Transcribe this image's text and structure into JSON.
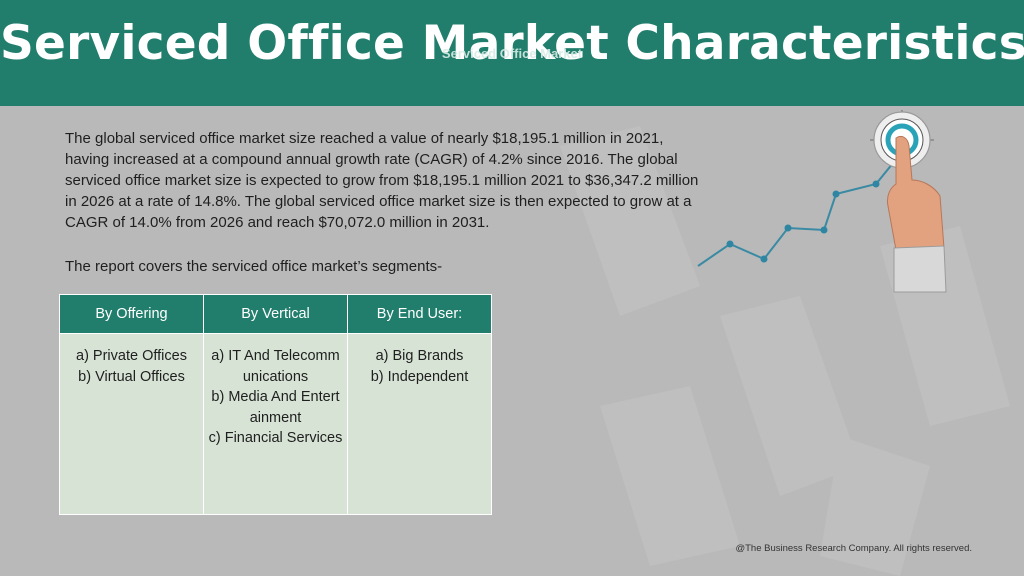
{
  "header": {
    "title": "Serviced Office Market Characteristics:",
    "overlay_text": "Serviced Office Market"
  },
  "intro": {
    "paragraph": "The global serviced office market size reached a value of nearly $18,195.1 million in 2021, having increased at a compound annual growth rate (CAGR) of 4.2% since 2016. The global serviced office market size is expected to grow from $18,195.1 million 2021 to $36,347.2 million in 2026 at a rate of 14.8%. The global serviced office market size is then expected to grow at a CAGR of 14.0% from 2026 and reach $70,072.0 million in 2031.",
    "segments_note": "The report covers the serviced office market’s segments-"
  },
  "segments": {
    "columns": [
      {
        "header": "By Offering",
        "items": [
          "a) Private Offices",
          "b) Virtual Offices"
        ]
      },
      {
        "header": "By Vertical",
        "items": [
          "a) IT And Telecommunications",
          "b) Media And Entertainment",
          "c) Financial Services"
        ]
      },
      {
        "header": "By End User:",
        "items": [
          "a) Big Brands",
          "b) Independent"
        ]
      }
    ]
  },
  "graphic": {
    "icon": "target-touch-growth-line-icon",
    "accent_color": "#2aa3b8"
  },
  "footer": {
    "copyright": "@The Business Research Company. All rights reserved."
  },
  "colors": {
    "header_bg": "#217e6c",
    "page_bg": "#b9b9b9",
    "table_body_bg": "#d7e4d5"
  }
}
